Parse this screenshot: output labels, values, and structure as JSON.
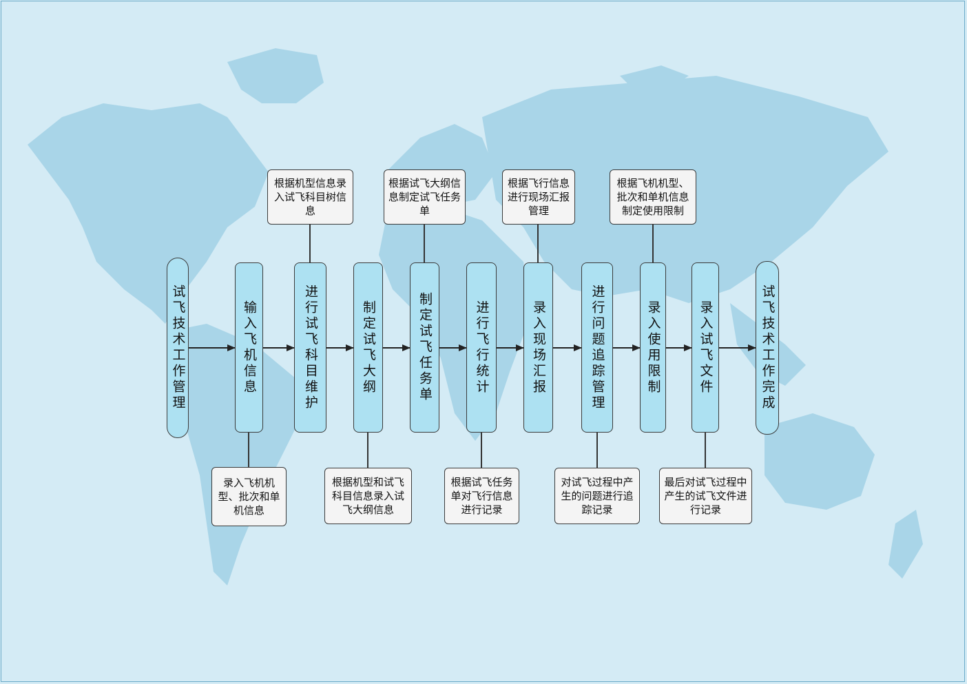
{
  "colors": {
    "background": "#d4ebf5",
    "land": "#a9d5e8",
    "step_fill": "#ade1f2",
    "note_fill": "#f4f4f4",
    "stroke": "#3a3a3a",
    "arrow": "#222222"
  },
  "steps": [
    {
      "id": "start",
      "label": "试飞技术工作管理"
    },
    {
      "id": "s1",
      "label": "输入飞机信息"
    },
    {
      "id": "s2",
      "label": "进行试飞科目维护"
    },
    {
      "id": "s3",
      "label": "制定试飞大纲"
    },
    {
      "id": "s4",
      "label": "制定试飞任务单"
    },
    {
      "id": "s5",
      "label": "进行飞行统计"
    },
    {
      "id": "s6",
      "label": "录入现场汇报"
    },
    {
      "id": "s7",
      "label": "进行问题追踪管理"
    },
    {
      "id": "s8",
      "label": "录入使用限制"
    },
    {
      "id": "s9",
      "label": "录入试飞文件"
    },
    {
      "id": "end",
      "label": "试飞技术工作完成"
    }
  ],
  "notes": [
    {
      "id": "n1",
      "step": "s1",
      "text": "录入飞机机型、批次和单机信息"
    },
    {
      "id": "n2",
      "step": "s2",
      "text": "根据机型信息录入试飞科目树信息"
    },
    {
      "id": "n3",
      "step": "s3",
      "text": "根据机型和试飞科目信息录入试飞大纲信息"
    },
    {
      "id": "n4",
      "step": "s4",
      "text": "根据试飞大纲信息制定试飞任务单"
    },
    {
      "id": "n5",
      "step": "s5",
      "text": "根据试飞任务单对飞行信息进行记录"
    },
    {
      "id": "n6",
      "step": "s6",
      "text": "根据飞行信息进行现场汇报管理"
    },
    {
      "id": "n7",
      "step": "s7",
      "text": "对试飞过程中产生的问题进行追踪记录"
    },
    {
      "id": "n8",
      "step": "s8",
      "text": "根据飞机机型、批次和单机信息制定使用限制"
    },
    {
      "id": "n9",
      "step": "s9",
      "text": "最后对试飞过程中产生的试飞文件进行记录"
    }
  ]
}
